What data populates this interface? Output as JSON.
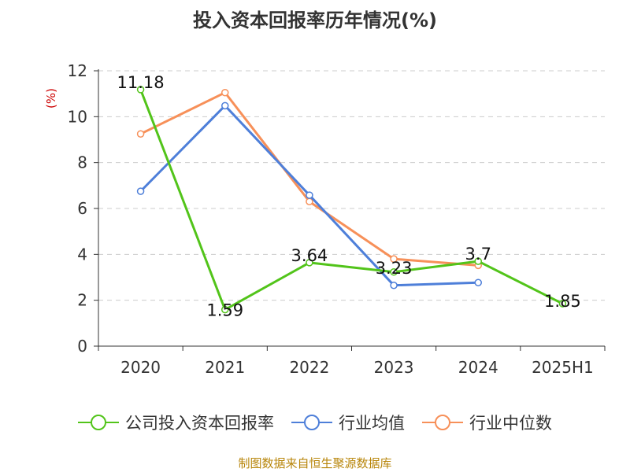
{
  "chart_data": {
    "type": "line",
    "title": "投入资本回报率历年情况(%)",
    "ylabel": "(%)",
    "categories": [
      "2020",
      "2021",
      "2022",
      "2023",
      "2024",
      "2025H1"
    ],
    "ylim": [
      0,
      12
    ],
    "yticks": [
      0,
      2,
      4,
      6,
      8,
      10,
      12
    ],
    "grid": true,
    "legend_position": "bottom",
    "series": [
      {
        "name": "公司投入资本回报率",
        "color": "#52c41a",
        "values": [
          11.18,
          1.59,
          3.64,
          3.23,
          3.7,
          1.85
        ],
        "labels": [
          "11.18",
          "1.59",
          "3.64",
          "3.23",
          "3.7",
          "1.85"
        ]
      },
      {
        "name": "行业均值",
        "color": "#4e7fd9",
        "values": [
          6.75,
          10.48,
          6.58,
          2.65,
          2.77,
          null
        ]
      },
      {
        "name": "行业中位数",
        "color": "#f79059",
        "values": [
          9.25,
          11.05,
          6.3,
          3.8,
          3.52,
          null
        ]
      }
    ]
  },
  "source": "制图数据来自恒生聚源数据库"
}
